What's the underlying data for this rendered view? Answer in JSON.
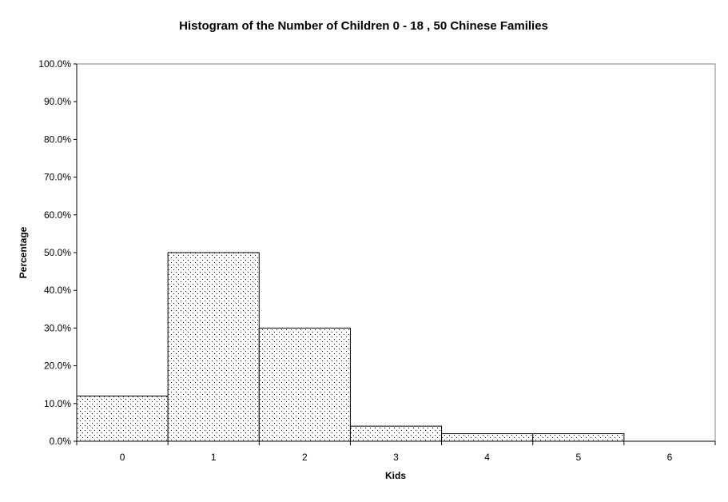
{
  "chart_data": {
    "type": "bar",
    "title": "Histogram of the Number of Children 0 - 18 , 50 Chinese Families",
    "xlabel": "Kids",
    "ylabel": "Percentage",
    "categories": [
      "0",
      "1",
      "2",
      "3",
      "4",
      "5",
      "6"
    ],
    "values": [
      12.0,
      50.0,
      30.0,
      4.0,
      2.0,
      2.0,
      0.0
    ],
    "ylim": [
      0,
      100
    ],
    "yticks": [
      "0.0%",
      "10.0%",
      "20.0%",
      "30.0%",
      "40.0%",
      "50.0%",
      "60.0%",
      "70.0%",
      "80.0%",
      "90.0%",
      "100.0%"
    ],
    "grid": false,
    "bar_fill": "dotted",
    "colors": {
      "bar_fill": "#ffffff",
      "bar_dots": "#000000",
      "bar_stroke": "#000000",
      "plot_border": "#808080",
      "background": "#ffffff"
    }
  }
}
